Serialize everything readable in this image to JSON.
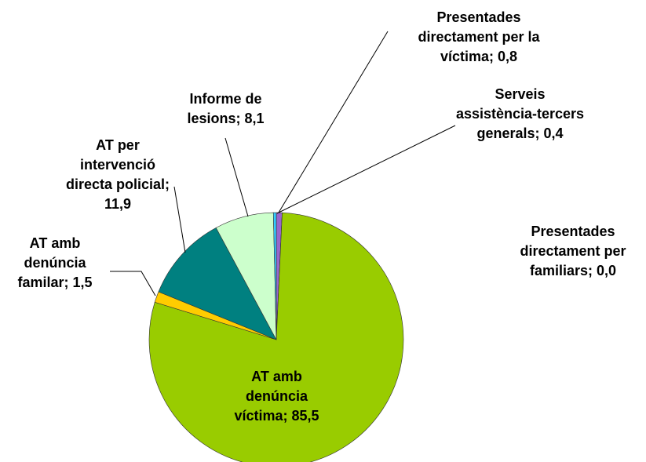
{
  "chart_data": {
    "type": "pie",
    "categories": [
      "Presentades directament per la víctima",
      "Presentades directament per familiars",
      "AT amb denúncia víctima",
      "AT amb denúncia familar",
      "AT per intervenció directa policial",
      "Informe de lesions",
      "Serveis assistència-tercers generals"
    ],
    "values": [
      0.8,
      0.0,
      85.5,
      1.5,
      11.9,
      8.1,
      0.4
    ],
    "value_labels": [
      "0,8",
      "0,0",
      "85,5",
      "1,5",
      "11,9",
      "8,1",
      "0,4"
    ],
    "data_label_separator": "; ",
    "colors": [
      "#9966cc",
      "#ff99cc",
      "#99cc00",
      "#ffcc00",
      "#008080",
      "#ccffcc",
      "#33ccff"
    ]
  }
}
